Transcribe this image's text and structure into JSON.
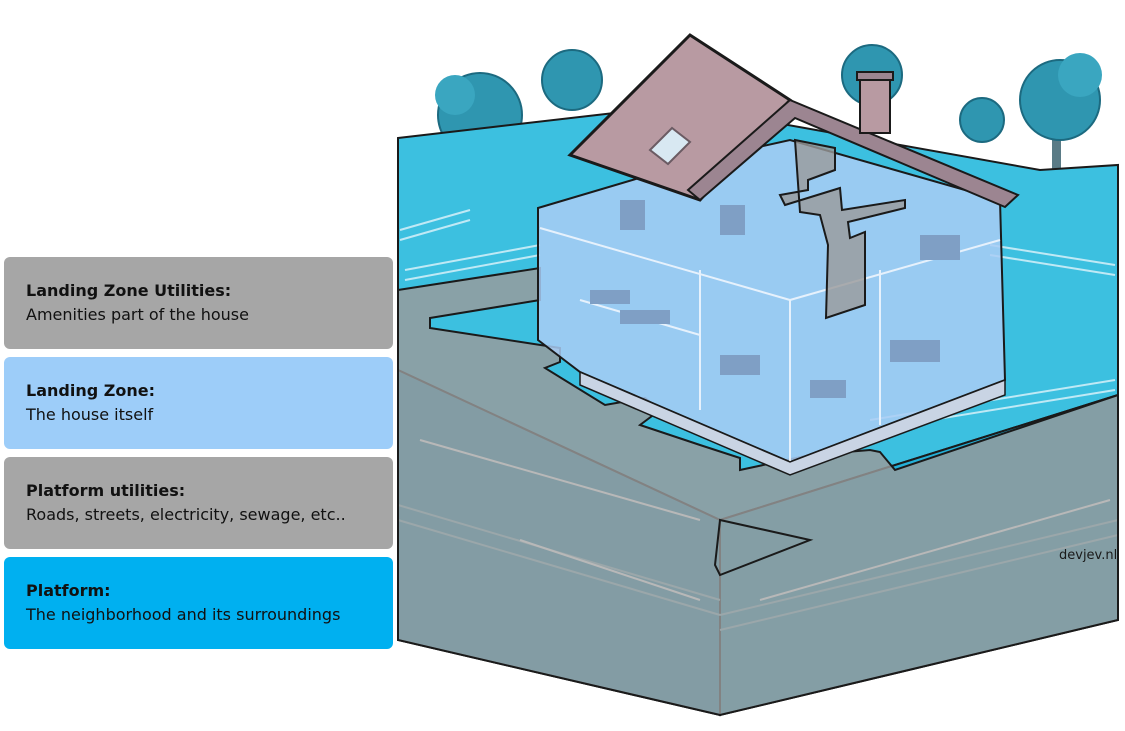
{
  "legend": [
    {
      "title": "Landing Zone Utilities:",
      "desc": "Amenities part of the house",
      "color": "#a6a6a6"
    },
    {
      "title": "Landing Zone:",
      "desc": "The house itself",
      "color": "#9dcdf9"
    },
    {
      "title": "Platform utilities:",
      "desc": "Roads, streets, electricity, sewage, etc..",
      "color": "#a6a6a6"
    },
    {
      "title": "Platform:",
      "desc": "The neighborhood and its surroundings",
      "color": "#00b0f0"
    }
  ],
  "watermark": "devjev.nl",
  "colors": {
    "platform": "#2fb8dc",
    "platform_dark": "#1b9cc3",
    "utilities_overlay": "#9a9a9a",
    "house_overlay": "#a9cdf5",
    "roof": "#b89aa2",
    "tree": "#2a8fa6"
  }
}
